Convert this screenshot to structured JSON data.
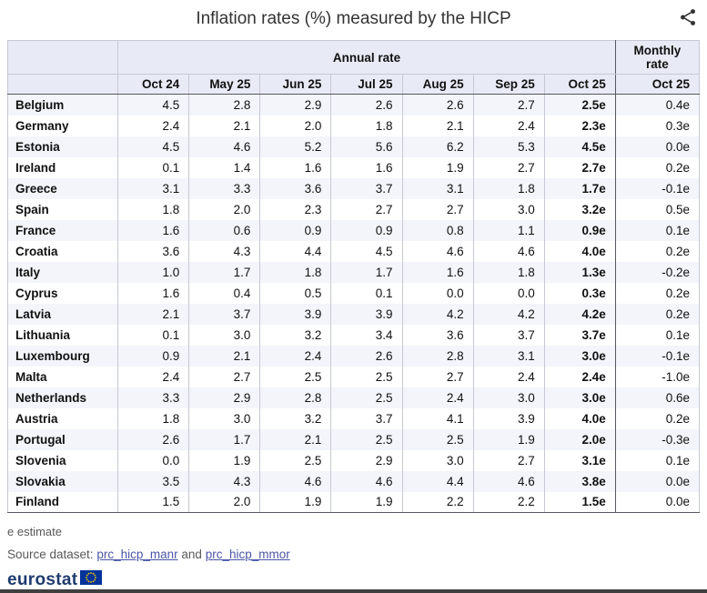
{
  "title_bar": {
    "title": "Inflation rates (%) measured by the HICP",
    "share_icon": "share-icon"
  },
  "chart_data": {
    "type": "table",
    "title": "Inflation rates (%) measured by the HICP",
    "column_groups": [
      {
        "label": "Annual rate",
        "span": 7
      },
      {
        "label": "Monthly rate",
        "span": 1
      }
    ],
    "annual_columns": [
      "Oct 24",
      "May 25",
      "Jun 25",
      "Jul 25",
      "Aug 25",
      "Sep 25",
      "Oct 25"
    ],
    "monthly_column": "Oct 25",
    "rows": [
      {
        "country": "Belgium",
        "annual": [
          "4.5",
          "2.8",
          "2.9",
          "2.6",
          "2.6",
          "2.7",
          "2.5e"
        ],
        "monthly": "0.4e"
      },
      {
        "country": "Germany",
        "annual": [
          "2.4",
          "2.1",
          "2.0",
          "1.8",
          "2.1",
          "2.4",
          "2.3e"
        ],
        "monthly": "0.3e"
      },
      {
        "country": "Estonia",
        "annual": [
          "4.5",
          "4.6",
          "5.2",
          "5.6",
          "6.2",
          "5.3",
          "4.5e"
        ],
        "monthly": "0.0e"
      },
      {
        "country": "Ireland",
        "annual": [
          "0.1",
          "1.4",
          "1.6",
          "1.6",
          "1.9",
          "2.7",
          "2.7e"
        ],
        "monthly": "0.2e"
      },
      {
        "country": "Greece",
        "annual": [
          "3.1",
          "3.3",
          "3.6",
          "3.7",
          "3.1",
          "1.8",
          "1.7e"
        ],
        "monthly": "-0.1e"
      },
      {
        "country": "Spain",
        "annual": [
          "1.8",
          "2.0",
          "2.3",
          "2.7",
          "2.7",
          "3.0",
          "3.2e"
        ],
        "monthly": "0.5e"
      },
      {
        "country": "France",
        "annual": [
          "1.6",
          "0.6",
          "0.9",
          "0.9",
          "0.8",
          "1.1",
          "0.9e"
        ],
        "monthly": "0.1e"
      },
      {
        "country": "Croatia",
        "annual": [
          "3.6",
          "4.3",
          "4.4",
          "4.5",
          "4.6",
          "4.6",
          "4.0e"
        ],
        "monthly": "0.2e"
      },
      {
        "country": "Italy",
        "annual": [
          "1.0",
          "1.7",
          "1.8",
          "1.7",
          "1.6",
          "1.8",
          "1.3e"
        ],
        "monthly": "-0.2e"
      },
      {
        "country": "Cyprus",
        "annual": [
          "1.6",
          "0.4",
          "0.5",
          "0.1",
          "0.0",
          "0.0",
          "0.3e"
        ],
        "monthly": "0.2e"
      },
      {
        "country": "Latvia",
        "annual": [
          "2.1",
          "3.7",
          "3.9",
          "3.9",
          "4.2",
          "4.2",
          "4.2e"
        ],
        "monthly": "0.2e"
      },
      {
        "country": "Lithuania",
        "annual": [
          "0.1",
          "3.0",
          "3.2",
          "3.4",
          "3.6",
          "3.7",
          "3.7e"
        ],
        "monthly": "0.1e"
      },
      {
        "country": "Luxembourg",
        "annual": [
          "0.9",
          "2.1",
          "2.4",
          "2.6",
          "2.8",
          "3.1",
          "3.0e"
        ],
        "monthly": "-0.1e"
      },
      {
        "country": "Malta",
        "annual": [
          "2.4",
          "2.7",
          "2.5",
          "2.5",
          "2.7",
          "2.4",
          "2.4e"
        ],
        "monthly": "-1.0e"
      },
      {
        "country": "Netherlands",
        "annual": [
          "3.3",
          "2.9",
          "2.8",
          "2.5",
          "2.4",
          "3.0",
          "3.0e"
        ],
        "monthly": "0.6e"
      },
      {
        "country": "Austria",
        "annual": [
          "1.8",
          "3.0",
          "3.2",
          "3.7",
          "4.1",
          "3.9",
          "4.0e"
        ],
        "monthly": "0.2e"
      },
      {
        "country": "Portugal",
        "annual": [
          "2.6",
          "1.7",
          "2.1",
          "2.5",
          "2.5",
          "1.9",
          "2.0e"
        ],
        "monthly": "-0.3e"
      },
      {
        "country": "Slovenia",
        "annual": [
          "0.0",
          "1.9",
          "2.5",
          "2.9",
          "3.0",
          "2.7",
          "3.1e"
        ],
        "monthly": "0.1e"
      },
      {
        "country": "Slovakia",
        "annual": [
          "3.5",
          "4.3",
          "4.6",
          "4.6",
          "4.4",
          "4.6",
          "3.8e"
        ],
        "monthly": "0.0e"
      },
      {
        "country": "Finland",
        "annual": [
          "1.5",
          "2.0",
          "1.9",
          "1.9",
          "2.2",
          "2.2",
          "1.5e"
        ],
        "monthly": "0.0e"
      }
    ],
    "note": "e estimate"
  },
  "footer": {
    "note": "e estimate",
    "source_prefix": "Source dataset:",
    "link_1": "prc_hicp_manr",
    "conjunction": "and",
    "link_2": "prc_hicp_mmor",
    "logo_text": "eurostat",
    "flag_icon": "eu-flag-icon"
  },
  "colors": {
    "header_bg": "#e8ebf6",
    "zebra_bg": "#f3f5fb",
    "dark_border": "#55585f",
    "light_border": "#c6c9d4",
    "link": "#4a56a6",
    "logo_blue": "#1f3b6e",
    "eu_blue": "#003399",
    "star_yellow": "#ffcc00"
  }
}
